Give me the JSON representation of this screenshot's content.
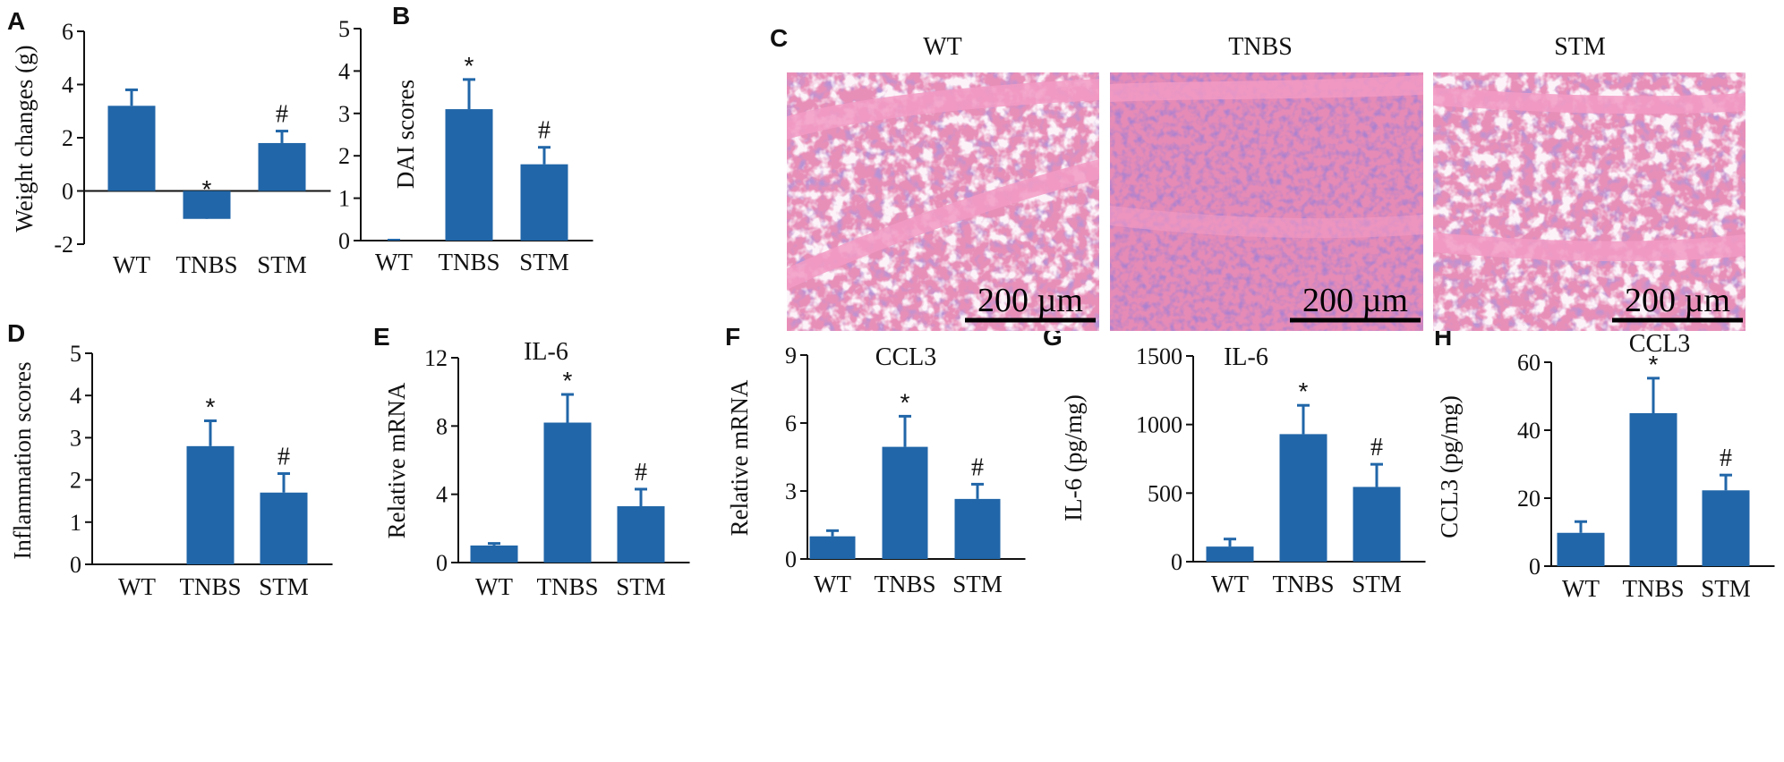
{
  "colors": {
    "bar": "#2166a8",
    "axis": "#111111",
    "text": "#111111",
    "histo_bg": "#e88fb8",
    "histo_nuclei": "#7a4aa6",
    "histo_lumen": "#f7e6f0"
  },
  "chart_data": [
    {
      "id": "A",
      "type": "bar",
      "panel_label": "A",
      "title": "",
      "ylabel": "Weight changes (g)",
      "xlabel": "",
      "categories": [
        "WT",
        "TNBS",
        "STM"
      ],
      "values": [
        3.2,
        -1.05,
        1.8
      ],
      "errors": [
        0.6,
        0.6,
        0.45
      ],
      "markers": [
        "",
        "*",
        "#"
      ],
      "ylim": [
        -2,
        6
      ],
      "yticks": [
        -2,
        0,
        2,
        4,
        6
      ],
      "ytick_labels": [
        "-2",
        "0",
        "2",
        "4",
        "6"
      ]
    },
    {
      "id": "B",
      "type": "bar",
      "panel_label": "B",
      "title": "",
      "ylabel": "DAI scores",
      "xlabel": "",
      "categories": [
        "WT",
        "TNBS",
        "STM"
      ],
      "values": [
        0,
        3.1,
        1.8
      ],
      "errors": [
        0,
        0.7,
        0.4
      ],
      "markers": [
        "",
        "*",
        "#"
      ],
      "ylim": [
        0,
        5
      ],
      "yticks": [
        0,
        1,
        2,
        3,
        4,
        5
      ],
      "ytick_labels": [
        "0",
        "1",
        "2",
        "3",
        "4",
        "5"
      ]
    },
    {
      "id": "D",
      "type": "bar",
      "panel_label": "D",
      "title": "",
      "ylabel": "Inflammation scores",
      "xlabel": "",
      "categories": [
        "WT",
        "TNBS",
        "STM"
      ],
      "values": [
        0,
        2.8,
        1.7
      ],
      "errors": [
        0,
        0.6,
        0.45
      ],
      "markers": [
        "",
        "*",
        "#"
      ],
      "ylim": [
        0,
        5
      ],
      "yticks": [
        0,
        1,
        2,
        3,
        4,
        5
      ],
      "ytick_labels": [
        "0",
        "1",
        "2",
        "3",
        "4",
        "5"
      ]
    },
    {
      "id": "E",
      "type": "bar",
      "panel_label": "E",
      "title": "IL-6",
      "ylabel": "Relative mRNA",
      "xlabel": "",
      "categories": [
        "WT",
        "TNBS",
        "STM"
      ],
      "values": [
        1.0,
        8.2,
        3.3
      ],
      "errors": [
        0.12,
        1.65,
        1.0
      ],
      "markers": [
        "",
        "*",
        "#"
      ],
      "ylim": [
        0,
        12
      ],
      "yticks": [
        0,
        4,
        8,
        12
      ],
      "ytick_labels": [
        "0",
        "4",
        "8",
        "12"
      ]
    },
    {
      "id": "F",
      "type": "bar",
      "panel_label": "F",
      "title": "CCL3",
      "ylabel": "Relative mRNA",
      "xlabel": "",
      "categories": [
        "WT",
        "TNBS",
        "STM"
      ],
      "values": [
        1.0,
        4.95,
        2.65
      ],
      "errors": [
        0.25,
        1.35,
        0.65
      ],
      "markers": [
        "",
        "*",
        "#"
      ],
      "ylim": [
        0,
        9
      ],
      "yticks": [
        0,
        3,
        6,
        9
      ],
      "ytick_labels": [
        "0",
        "3",
        "6",
        "9"
      ]
    },
    {
      "id": "G",
      "type": "bar",
      "panel_label": "G",
      "title": "IL-6",
      "ylabel": "IL-6 (pg/mg)",
      "xlabel": "",
      "categories": [
        "WT",
        "TNBS",
        "STM"
      ],
      "values": [
        110,
        930,
        545
      ],
      "errors": [
        55,
        210,
        165
      ],
      "markers": [
        "",
        "*",
        "#"
      ],
      "ylim": [
        0,
        1500
      ],
      "yticks": [
        0,
        500,
        1000,
        1500
      ],
      "ytick_labels": [
        "0",
        "500",
        "1000",
        "1500"
      ]
    },
    {
      "id": "H",
      "type": "bar",
      "panel_label": "H",
      "title": "CCL3",
      "ylabel": "CCL3 (pg/mg)",
      "xlabel": "",
      "categories": [
        "WT",
        "TNBS",
        "STM"
      ],
      "values": [
        9.8,
        45,
        22.3
      ],
      "errors": [
        3.3,
        10.3,
        4.5
      ],
      "markers": [
        "",
        "*",
        "#"
      ],
      "ylim": [
        0,
        60
      ],
      "yticks": [
        0,
        20,
        40,
        60
      ],
      "ytick_labels": [
        "0",
        "20",
        "40",
        "60"
      ]
    }
  ],
  "histology": {
    "panel_label": "C",
    "images": [
      {
        "title": "WT",
        "scalebar": "200 µm"
      },
      {
        "title": "TNBS",
        "scalebar": "200 µm"
      },
      {
        "title": "STM",
        "scalebar": "200 µm"
      }
    ]
  }
}
